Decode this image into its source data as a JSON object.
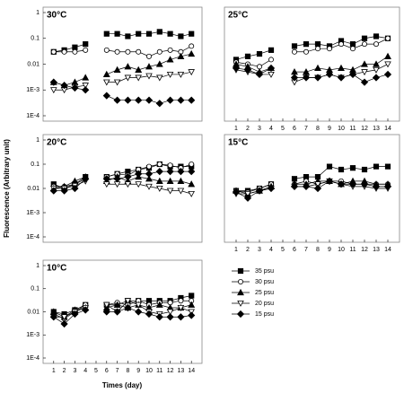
{
  "ylabel": "Fluorescence (Arbitrary unit)",
  "xlabel": "Times (day)",
  "chart_data": [
    {
      "type": "line",
      "title": "30°C",
      "log": true,
      "x": [
        1,
        2,
        3,
        4,
        5,
        6,
        7,
        8,
        9,
        10,
        11,
        12,
        13,
        14
      ],
      "xlim": [
        0,
        15
      ],
      "ylim": [
        0.0001,
        1
      ],
      "yticks": [
        1,
        0.1,
        0.01,
        {
          "value": 0.001,
          "label": "1E-3"
        },
        {
          "value": 0.0001,
          "label": "1E-4"
        }
      ],
      "series": [
        {
          "color": "#000",
          "marker": "square",
          "values": [
            0.03,
            0.035,
            0.045,
            0.06,
            null,
            0.15,
            0.15,
            0.12,
            0.15,
            0.15,
            0.18,
            0.15,
            0.12,
            0.15
          ]
        },
        {
          "color": "#000",
          "marker": "circle",
          "values": [
            0.03,
            0.03,
            0.03,
            0.035,
            null,
            0.035,
            0.03,
            0.03,
            0.03,
            0.02,
            0.03,
            0.035,
            0.03,
            0.05
          ]
        },
        {
          "color": "#000",
          "marker": "triangle",
          "values": [
            0.002,
            0.0015,
            0.002,
            0.003,
            null,
            0.004,
            0.006,
            0.008,
            0.006,
            0.008,
            0.01,
            0.015,
            0.02,
            0.025
          ]
        },
        {
          "color": "#000",
          "marker": "down",
          "values": [
            0.001,
            0.001,
            0.0013,
            0.0015,
            null,
            0.002,
            0.002,
            0.003,
            0.003,
            0.0035,
            0.003,
            0.004,
            0.004,
            0.005
          ]
        },
        {
          "color": "#000",
          "marker": "diamond",
          "values": [
            0.002,
            0.0015,
            0.0012,
            0.001,
            null,
            0.0006,
            0.0004,
            0.0004,
            0.0004,
            0.0004,
            0.0003,
            0.0004,
            0.0004,
            0.0004
          ]
        }
      ]
    },
    {
      "type": "line",
      "title": "25°C",
      "log": true,
      "x": [
        1,
        2,
        3,
        4,
        5,
        6,
        7,
        8,
        9,
        10,
        11,
        12,
        13,
        14
      ],
      "xlim": [
        0,
        15
      ],
      "ylim": [
        0.0001,
        1
      ],
      "xticks": [
        1,
        2,
        3,
        4,
        5,
        6,
        7,
        8,
        9,
        10,
        11,
        12,
        13,
        14
      ],
      "series": [
        {
          "color": "#000",
          "marker": "square",
          "values": [
            0.015,
            0.02,
            0.025,
            0.035,
            null,
            0.05,
            0.06,
            0.06,
            0.05,
            0.08,
            0.06,
            0.1,
            0.12,
            0.1
          ]
        },
        {
          "color": "#000",
          "marker": "circle",
          "values": [
            0.012,
            0.01,
            0.008,
            0.015,
            null,
            0.03,
            0.03,
            0.04,
            0.04,
            0.06,
            0.04,
            0.06,
            0.06,
            0.1
          ]
        },
        {
          "color": "#000",
          "marker": "triangle",
          "values": [
            0.01,
            0.008,
            0.005,
            0.007,
            null,
            0.005,
            0.005,
            0.007,
            0.006,
            0.007,
            0.006,
            0.01,
            0.01,
            0.02
          ]
        },
        {
          "color": "#000",
          "marker": "down",
          "values": [
            0.006,
            0.005,
            0.004,
            0.004,
            null,
            0.002,
            0.003,
            0.003,
            0.004,
            0.003,
            0.004,
            0.005,
            0.006,
            0.01
          ]
        },
        {
          "color": "#000",
          "marker": "diamond",
          "values": [
            0.007,
            0.006,
            0.004,
            0.007,
            null,
            0.003,
            0.003,
            0.003,
            0.004,
            0.003,
            0.004,
            0.002,
            0.003,
            0.004
          ]
        }
      ]
    },
    {
      "type": "line",
      "title": "20°C",
      "log": true,
      "x": [
        1,
        2,
        3,
        4,
        5,
        6,
        7,
        8,
        9,
        10,
        11,
        12,
        13,
        14
      ],
      "xlim": [
        0,
        15
      ],
      "ylim": [
        0.0001,
        1
      ],
      "yticks": [
        1,
        0.1,
        0.01,
        {
          "value": 0.001,
          "label": "1E-3"
        },
        {
          "value": 0.0001,
          "label": "1E-4"
        }
      ],
      "series": [
        {
          "color": "#000",
          "marker": "square",
          "values": [
            0.015,
            0.01,
            0.015,
            0.03,
            null,
            0.03,
            0.04,
            0.05,
            0.06,
            0.07,
            0.1,
            0.08,
            0.08,
            0.08
          ]
        },
        {
          "color": "#000",
          "marker": "circle",
          "values": [
            0.012,
            0.012,
            0.015,
            0.025,
            null,
            0.03,
            0.04,
            0.035,
            0.06,
            0.08,
            0.1,
            0.09,
            0.07,
            0.1
          ]
        },
        {
          "color": "#000",
          "marker": "triangle",
          "values": [
            0.01,
            0.012,
            0.02,
            0.03,
            null,
            0.02,
            0.03,
            0.02,
            0.03,
            0.025,
            0.02,
            0.02,
            0.02,
            0.015
          ]
        },
        {
          "color": "#000",
          "marker": "down",
          "values": [
            0.01,
            0.01,
            0.013,
            0.02,
            null,
            0.015,
            0.015,
            0.015,
            0.015,
            0.012,
            0.01,
            0.008,
            0.008,
            0.006
          ]
        },
        {
          "color": "#000",
          "marker": "diamond",
          "values": [
            0.008,
            0.008,
            0.01,
            0.025,
            null,
            0.025,
            0.025,
            0.03,
            0.04,
            0.04,
            0.05,
            0.05,
            0.05,
            0.05
          ]
        }
      ]
    },
    {
      "type": "line",
      "title": "15°C",
      "log": true,
      "x": [
        1,
        2,
        3,
        4,
        5,
        6,
        7,
        8,
        9,
        10,
        11,
        12,
        13,
        14
      ],
      "xlim": [
        0,
        15
      ],
      "ylim": [
        0.0001,
        1
      ],
      "xticks": [
        1,
        2,
        3,
        4,
        5,
        6,
        7,
        8,
        9,
        10,
        11,
        12,
        13,
        14
      ],
      "series": [
        {
          "color": "#000",
          "marker": "square",
          "values": [
            0.008,
            0.008,
            0.01,
            0.015,
            null,
            0.025,
            0.03,
            0.03,
            0.08,
            0.06,
            0.07,
            0.06,
            0.08,
            0.08
          ]
        },
        {
          "color": "#000",
          "marker": "circle",
          "values": [
            0.008,
            0.007,
            0.01,
            0.015,
            null,
            0.015,
            0.02,
            0.015,
            0.02,
            0.02,
            0.015,
            0.015,
            0.015,
            0.015
          ]
        },
        {
          "color": "#000",
          "marker": "triangle",
          "values": [
            0.008,
            0.006,
            0.008,
            0.012,
            null,
            0.015,
            0.015,
            0.02,
            0.02,
            0.015,
            0.02,
            0.02,
            0.015,
            0.015
          ]
        },
        {
          "color": "#000",
          "marker": "down",
          "values": [
            0.006,
            0.006,
            0.008,
            0.01,
            null,
            0.012,
            0.012,
            0.015,
            0.02,
            0.015,
            0.012,
            0.012,
            0.01,
            0.01
          ]
        },
        {
          "color": "#000",
          "marker": "diamond",
          "values": [
            0.007,
            0.004,
            0.008,
            0.01,
            null,
            0.012,
            0.012,
            0.01,
            0.02,
            0.015,
            0.015,
            0.015,
            0.012,
            0.012
          ]
        }
      ]
    },
    {
      "type": "line",
      "title": "10°C",
      "log": true,
      "x": [
        1,
        2,
        3,
        4,
        5,
        6,
        7,
        8,
        9,
        10,
        11,
        12,
        13,
        14
      ],
      "xlim": [
        0,
        15
      ],
      "ylim": [
        0.0001,
        1
      ],
      "xticks": [
        1,
        2,
        3,
        4,
        5,
        6,
        7,
        8,
        9,
        10,
        11,
        12,
        13,
        14
      ],
      "yticks": [
        1,
        0.1,
        0.01,
        {
          "value": 0.001,
          "label": "1E-3"
        },
        {
          "value": 0.0001,
          "label": "1E-4"
        }
      ],
      "series": [
        {
          "name": "35 psu",
          "color": "#000",
          "marker": "square",
          "values": [
            0.01,
            0.008,
            0.012,
            0.02,
            null,
            0.02,
            0.02,
            0.03,
            0.03,
            0.03,
            0.03,
            0.03,
            0.04,
            0.05
          ]
        },
        {
          "name": "30 psu",
          "color": "#000",
          "marker": "circle",
          "values": [
            0.008,
            0.005,
            0.01,
            0.02,
            null,
            0.02,
            0.025,
            0.02,
            0.03,
            0.02,
            0.025,
            0.025,
            0.03,
            0.03
          ]
        },
        {
          "name": "25 psu",
          "color": "#000",
          "marker": "triangle",
          "values": [
            0.01,
            0.006,
            0.012,
            0.015,
            null,
            0.015,
            0.02,
            0.015,
            0.02,
            0.015,
            0.02,
            0.015,
            0.015,
            0.02
          ]
        },
        {
          "name": "20 psu",
          "color": "#000",
          "marker": "down",
          "values": [
            0.006,
            0.006,
            0.01,
            0.015,
            null,
            0.02,
            0.01,
            0.03,
            0.02,
            0.01,
            0.008,
            0.01,
            0.015,
            0.01
          ]
        },
        {
          "name": "15 psu",
          "color": "#000",
          "marker": "diamond",
          "values": [
            0.006,
            0.003,
            0.008,
            0.012,
            null,
            0.01,
            0.01,
            0.015,
            0.01,
            0.008,
            0.006,
            0.006,
            0.006,
            0.007
          ]
        }
      ]
    }
  ]
}
